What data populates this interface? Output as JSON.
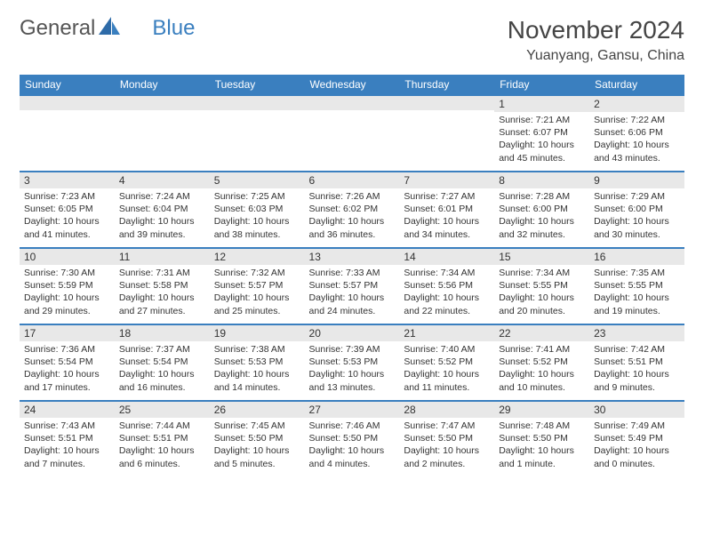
{
  "logo": {
    "part1": "General",
    "part2": "Blue"
  },
  "title": "November 2024",
  "location": "Yuanyang, Gansu, China",
  "colors": {
    "accent": "#3a7fbf",
    "daynum_bg": "#e8e8e8",
    "text": "#333333"
  },
  "dayNames": [
    "Sunday",
    "Monday",
    "Tuesday",
    "Wednesday",
    "Thursday",
    "Friday",
    "Saturday"
  ],
  "weeks": [
    [
      {
        "n": "",
        "sr": "",
        "ss": "",
        "dl": ""
      },
      {
        "n": "",
        "sr": "",
        "ss": "",
        "dl": ""
      },
      {
        "n": "",
        "sr": "",
        "ss": "",
        "dl": ""
      },
      {
        "n": "",
        "sr": "",
        "ss": "",
        "dl": ""
      },
      {
        "n": "",
        "sr": "",
        "ss": "",
        "dl": ""
      },
      {
        "n": "1",
        "sr": "Sunrise: 7:21 AM",
        "ss": "Sunset: 6:07 PM",
        "dl": "Daylight: 10 hours and 45 minutes."
      },
      {
        "n": "2",
        "sr": "Sunrise: 7:22 AM",
        "ss": "Sunset: 6:06 PM",
        "dl": "Daylight: 10 hours and 43 minutes."
      }
    ],
    [
      {
        "n": "3",
        "sr": "Sunrise: 7:23 AM",
        "ss": "Sunset: 6:05 PM",
        "dl": "Daylight: 10 hours and 41 minutes."
      },
      {
        "n": "4",
        "sr": "Sunrise: 7:24 AM",
        "ss": "Sunset: 6:04 PM",
        "dl": "Daylight: 10 hours and 39 minutes."
      },
      {
        "n": "5",
        "sr": "Sunrise: 7:25 AM",
        "ss": "Sunset: 6:03 PM",
        "dl": "Daylight: 10 hours and 38 minutes."
      },
      {
        "n": "6",
        "sr": "Sunrise: 7:26 AM",
        "ss": "Sunset: 6:02 PM",
        "dl": "Daylight: 10 hours and 36 minutes."
      },
      {
        "n": "7",
        "sr": "Sunrise: 7:27 AM",
        "ss": "Sunset: 6:01 PM",
        "dl": "Daylight: 10 hours and 34 minutes."
      },
      {
        "n": "8",
        "sr": "Sunrise: 7:28 AM",
        "ss": "Sunset: 6:00 PM",
        "dl": "Daylight: 10 hours and 32 minutes."
      },
      {
        "n": "9",
        "sr": "Sunrise: 7:29 AM",
        "ss": "Sunset: 6:00 PM",
        "dl": "Daylight: 10 hours and 30 minutes."
      }
    ],
    [
      {
        "n": "10",
        "sr": "Sunrise: 7:30 AM",
        "ss": "Sunset: 5:59 PM",
        "dl": "Daylight: 10 hours and 29 minutes."
      },
      {
        "n": "11",
        "sr": "Sunrise: 7:31 AM",
        "ss": "Sunset: 5:58 PM",
        "dl": "Daylight: 10 hours and 27 minutes."
      },
      {
        "n": "12",
        "sr": "Sunrise: 7:32 AM",
        "ss": "Sunset: 5:57 PM",
        "dl": "Daylight: 10 hours and 25 minutes."
      },
      {
        "n": "13",
        "sr": "Sunrise: 7:33 AM",
        "ss": "Sunset: 5:57 PM",
        "dl": "Daylight: 10 hours and 24 minutes."
      },
      {
        "n": "14",
        "sr": "Sunrise: 7:34 AM",
        "ss": "Sunset: 5:56 PM",
        "dl": "Daylight: 10 hours and 22 minutes."
      },
      {
        "n": "15",
        "sr": "Sunrise: 7:34 AM",
        "ss": "Sunset: 5:55 PM",
        "dl": "Daylight: 10 hours and 20 minutes."
      },
      {
        "n": "16",
        "sr": "Sunrise: 7:35 AM",
        "ss": "Sunset: 5:55 PM",
        "dl": "Daylight: 10 hours and 19 minutes."
      }
    ],
    [
      {
        "n": "17",
        "sr": "Sunrise: 7:36 AM",
        "ss": "Sunset: 5:54 PM",
        "dl": "Daylight: 10 hours and 17 minutes."
      },
      {
        "n": "18",
        "sr": "Sunrise: 7:37 AM",
        "ss": "Sunset: 5:54 PM",
        "dl": "Daylight: 10 hours and 16 minutes."
      },
      {
        "n": "19",
        "sr": "Sunrise: 7:38 AM",
        "ss": "Sunset: 5:53 PM",
        "dl": "Daylight: 10 hours and 14 minutes."
      },
      {
        "n": "20",
        "sr": "Sunrise: 7:39 AM",
        "ss": "Sunset: 5:53 PM",
        "dl": "Daylight: 10 hours and 13 minutes."
      },
      {
        "n": "21",
        "sr": "Sunrise: 7:40 AM",
        "ss": "Sunset: 5:52 PM",
        "dl": "Daylight: 10 hours and 11 minutes."
      },
      {
        "n": "22",
        "sr": "Sunrise: 7:41 AM",
        "ss": "Sunset: 5:52 PM",
        "dl": "Daylight: 10 hours and 10 minutes."
      },
      {
        "n": "23",
        "sr": "Sunrise: 7:42 AM",
        "ss": "Sunset: 5:51 PM",
        "dl": "Daylight: 10 hours and 9 minutes."
      }
    ],
    [
      {
        "n": "24",
        "sr": "Sunrise: 7:43 AM",
        "ss": "Sunset: 5:51 PM",
        "dl": "Daylight: 10 hours and 7 minutes."
      },
      {
        "n": "25",
        "sr": "Sunrise: 7:44 AM",
        "ss": "Sunset: 5:51 PM",
        "dl": "Daylight: 10 hours and 6 minutes."
      },
      {
        "n": "26",
        "sr": "Sunrise: 7:45 AM",
        "ss": "Sunset: 5:50 PM",
        "dl": "Daylight: 10 hours and 5 minutes."
      },
      {
        "n": "27",
        "sr": "Sunrise: 7:46 AM",
        "ss": "Sunset: 5:50 PM",
        "dl": "Daylight: 10 hours and 4 minutes."
      },
      {
        "n": "28",
        "sr": "Sunrise: 7:47 AM",
        "ss": "Sunset: 5:50 PM",
        "dl": "Daylight: 10 hours and 2 minutes."
      },
      {
        "n": "29",
        "sr": "Sunrise: 7:48 AM",
        "ss": "Sunset: 5:50 PM",
        "dl": "Daylight: 10 hours and 1 minute."
      },
      {
        "n": "30",
        "sr": "Sunrise: 7:49 AM",
        "ss": "Sunset: 5:49 PM",
        "dl": "Daylight: 10 hours and 0 minutes."
      }
    ]
  ]
}
